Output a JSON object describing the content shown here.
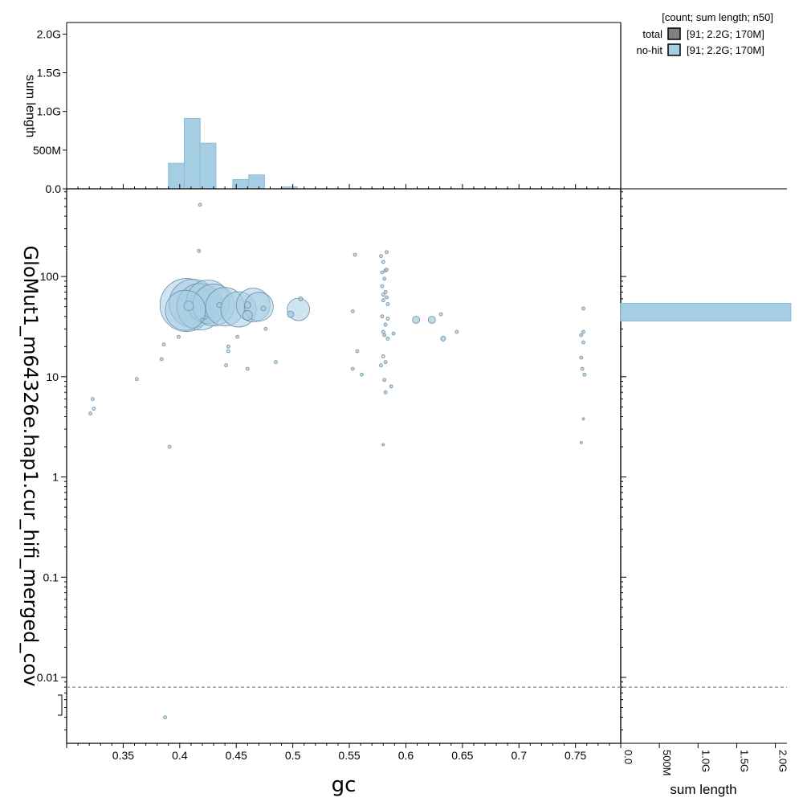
{
  "chart_data": {
    "type": "scatter",
    "x_axis": {
      "label": "gc",
      "ticks": [
        "0.35",
        "0.4",
        "0.45",
        "0.5",
        "0.55",
        "0.6",
        "0.65",
        "0.7",
        "0.75"
      ],
      "tick_values": [
        0.35,
        0.4,
        0.45,
        0.5,
        0.55,
        0.6,
        0.65,
        0.7,
        0.75
      ],
      "range": [
        0.3,
        0.79
      ],
      "scale": "linear"
    },
    "y_axis": {
      "label": "GloMut1_m64326e.hap1.cur_hifi_merged_cov",
      "ticks": [
        "100",
        "10",
        "1",
        "0.1",
        "0.01"
      ],
      "tick_values": [
        100,
        10,
        1,
        0.1,
        0.01
      ],
      "scale": "log",
      "range": [
        0.0022,
        750
      ],
      "zero_line_value": 0.008
    },
    "top_hist": {
      "ylabel": "sum length",
      "ticks": [
        "0.0",
        "500M",
        "1.0G",
        "1.5G",
        "2.0G"
      ],
      "tick_values": [
        0,
        500,
        1000,
        1500,
        2000
      ],
      "unit": "M",
      "bins": [
        {
          "x0": 0.39,
          "x1": 0.404,
          "value": 330
        },
        {
          "x0": 0.404,
          "x1": 0.418,
          "value": 910
        },
        {
          "x0": 0.418,
          "x1": 0.432,
          "value": 590
        },
        {
          "x0": 0.447,
          "x1": 0.461,
          "value": 120
        },
        {
          "x0": 0.461,
          "x1": 0.475,
          "value": 180
        },
        {
          "x0": 0.49,
          "x1": 0.504,
          "value": 25
        }
      ]
    },
    "right_hist": {
      "xlabel": "sum length",
      "ticks": [
        "0.0",
        "500M",
        "1.0G",
        "1.5G",
        "2.0G"
      ],
      "tick_values": [
        0,
        500,
        1000,
        1500,
        2000
      ],
      "bins": [
        {
          "y0": 36,
          "y1": 54,
          "value": 2200
        }
      ]
    },
    "legend": {
      "placement": "top-right",
      "header": "[count; sum length; n50]",
      "entries": [
        {
          "name": "total",
          "stats": "[91; 2.2G; 170M]",
          "color": "#808080"
        },
        {
          "name": "no-hit",
          "stats": "[91; 2.2G; 170M]",
          "color": "#a6cee3"
        }
      ]
    },
    "colors": {
      "fill": "#a6cee3",
      "stroke": "#6f8fa6",
      "dash": "#999999"
    },
    "points": [
      {
        "x": 0.406,
        "y": 52,
        "r": 33
      },
      {
        "x": 0.412,
        "y": 54,
        "r": 30
      },
      {
        "x": 0.418,
        "y": 50,
        "r": 29
      },
      {
        "x": 0.425,
        "y": 56,
        "r": 27
      },
      {
        "x": 0.43,
        "y": 52,
        "r": 26
      },
      {
        "x": 0.44,
        "y": 50,
        "r": 24
      },
      {
        "x": 0.405,
        "y": 46,
        "r": 25
      },
      {
        "x": 0.452,
        "y": 47,
        "r": 22
      },
      {
        "x": 0.465,
        "y": 52,
        "r": 21
      },
      {
        "x": 0.47,
        "y": 50,
        "r": 18
      },
      {
        "x": 0.505,
        "y": 47,
        "r": 14
      },
      {
        "x": 0.408,
        "y": 51,
        "r": 6
      },
      {
        "x": 0.46,
        "y": 41,
        "r": 6
      },
      {
        "x": 0.46,
        "y": 52,
        "r": 4
      },
      {
        "x": 0.498,
        "y": 42,
        "r": 4
      },
      {
        "x": 0.435,
        "y": 52,
        "r": 3
      },
      {
        "x": 0.474,
        "y": 48,
        "r": 3
      },
      {
        "x": 0.609,
        "y": 37,
        "r": 4.5
      },
      {
        "x": 0.623,
        "y": 37,
        "r": 4.5
      },
      {
        "x": 0.633,
        "y": 24,
        "r": 3
      },
      {
        "x": 0.418,
        "y": 520,
        "r": 2
      },
      {
        "x": 0.417,
        "y": 180,
        "r": 2
      },
      {
        "x": 0.321,
        "y": 4.3,
        "r": 2
      },
      {
        "x": 0.323,
        "y": 6,
        "r": 2
      },
      {
        "x": 0.324,
        "y": 4.8,
        "r": 2
      },
      {
        "x": 0.362,
        "y": 9.5,
        "r": 2
      },
      {
        "x": 0.384,
        "y": 15,
        "r": 2
      },
      {
        "x": 0.386,
        "y": 21,
        "r": 2
      },
      {
        "x": 0.391,
        "y": 2,
        "r": 2
      },
      {
        "x": 0.387,
        "y": 0.004,
        "r": 2
      },
      {
        "x": 0.399,
        "y": 25,
        "r": 2
      },
      {
        "x": 0.42,
        "y": 37,
        "r": 2
      },
      {
        "x": 0.423,
        "y": 39,
        "r": 2
      },
      {
        "x": 0.441,
        "y": 13,
        "r": 2
      },
      {
        "x": 0.443,
        "y": 18,
        "r": 2
      },
      {
        "x": 0.443,
        "y": 20,
        "r": 2
      },
      {
        "x": 0.451,
        "y": 25,
        "r": 2
      },
      {
        "x": 0.46,
        "y": 12,
        "r": 2
      },
      {
        "x": 0.476,
        "y": 30,
        "r": 2
      },
      {
        "x": 0.485,
        "y": 14,
        "r": 2
      },
      {
        "x": 0.507,
        "y": 60,
        "r": 2.5
      },
      {
        "x": 0.555,
        "y": 165,
        "r": 2
      },
      {
        "x": 0.553,
        "y": 45,
        "r": 2
      },
      {
        "x": 0.557,
        "y": 18,
        "r": 2
      },
      {
        "x": 0.553,
        "y": 12,
        "r": 2
      },
      {
        "x": 0.561,
        "y": 10.5,
        "r": 2
      },
      {
        "x": 0.578,
        "y": 160,
        "r": 2
      },
      {
        "x": 0.583,
        "y": 175,
        "r": 2
      },
      {
        "x": 0.58,
        "y": 140,
        "r": 2
      },
      {
        "x": 0.582,
        "y": 115,
        "r": 2
      },
      {
        "x": 0.579,
        "y": 110,
        "r": 2
      },
      {
        "x": 0.583,
        "y": 117,
        "r": 2
      },
      {
        "x": 0.581,
        "y": 95,
        "r": 2
      },
      {
        "x": 0.579,
        "y": 80,
        "r": 2
      },
      {
        "x": 0.582,
        "y": 70,
        "r": 2
      },
      {
        "x": 0.58,
        "y": 66,
        "r": 2
      },
      {
        "x": 0.583,
        "y": 62,
        "r": 2
      },
      {
        "x": 0.58,
        "y": 58,
        "r": 2
      },
      {
        "x": 0.584,
        "y": 53,
        "r": 2
      },
      {
        "x": 0.579,
        "y": 40,
        "r": 2
      },
      {
        "x": 0.584,
        "y": 38,
        "r": 2
      },
      {
        "x": 0.582,
        "y": 33,
        "r": 2
      },
      {
        "x": 0.58,
        "y": 28,
        "r": 2
      },
      {
        "x": 0.581,
        "y": 26,
        "r": 2
      },
      {
        "x": 0.584,
        "y": 24,
        "r": 2
      },
      {
        "x": 0.589,
        "y": 27,
        "r": 2
      },
      {
        "x": 0.58,
        "y": 16,
        "r": 2
      },
      {
        "x": 0.582,
        "y": 14,
        "r": 2
      },
      {
        "x": 0.578,
        "y": 13,
        "r": 2
      },
      {
        "x": 0.581,
        "y": 9.3,
        "r": 2
      },
      {
        "x": 0.587,
        "y": 8,
        "r": 2
      },
      {
        "x": 0.582,
        "y": 7,
        "r": 2
      },
      {
        "x": 0.58,
        "y": 2.1,
        "r": 1.5
      },
      {
        "x": 0.631,
        "y": 42,
        "r": 2
      },
      {
        "x": 0.645,
        "y": 28,
        "r": 2
      },
      {
        "x": 0.757,
        "y": 48,
        "r": 2
      },
      {
        "x": 0.757,
        "y": 28,
        "r": 2
      },
      {
        "x": 0.755,
        "y": 26,
        "r": 2
      },
      {
        "x": 0.757,
        "y": 22,
        "r": 2
      },
      {
        "x": 0.755,
        "y": 15.5,
        "r": 2
      },
      {
        "x": 0.756,
        "y": 12,
        "r": 2
      },
      {
        "x": 0.758,
        "y": 10.5,
        "r": 2
      },
      {
        "x": 0.757,
        "y": 3.8,
        "r": 1.5
      },
      {
        "x": 0.755,
        "y": 2.2,
        "r": 1.5
      }
    ]
  }
}
